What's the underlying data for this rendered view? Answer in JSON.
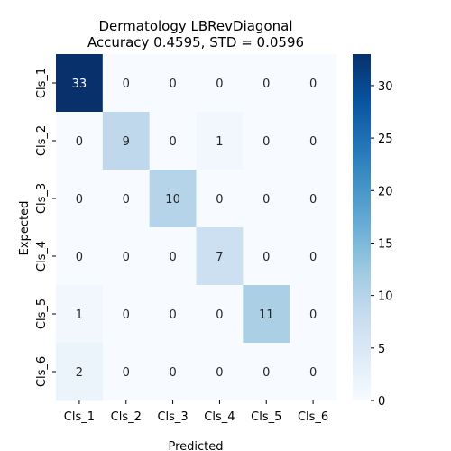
{
  "chart_data": {
    "type": "heatmap",
    "title": "Dermatology LBRevDiagonal",
    "subtitle": "Accuracy 0.4595, STD = 0.0596",
    "xlabel": "Predicted",
    "ylabel": "Expected",
    "x_categories": [
      "Cls_1",
      "Cls_2",
      "Cls_3",
      "Cls_4",
      "Cls_5",
      "Cls_6"
    ],
    "y_categories": [
      "Cls_1",
      "Cls_2",
      "Cls_3",
      "Cls_4",
      "Cls_5",
      "Cls_6"
    ],
    "values": [
      [
        33,
        0,
        0,
        0,
        0,
        0
      ],
      [
        0,
        9,
        0,
        1,
        0,
        0
      ],
      [
        0,
        0,
        10,
        0,
        0,
        0
      ],
      [
        0,
        0,
        0,
        7,
        0,
        0
      ],
      [
        1,
        0,
        0,
        0,
        11,
        0
      ],
      [
        2,
        0,
        0,
        0,
        0,
        0
      ]
    ],
    "colormap": "Blues",
    "color_range": [
      0,
      33
    ],
    "colorbar_ticks": [
      0,
      5,
      10,
      15,
      20,
      25,
      30
    ],
    "colors": {
      "low": "#f7fbff",
      "high": "#08306b"
    }
  }
}
